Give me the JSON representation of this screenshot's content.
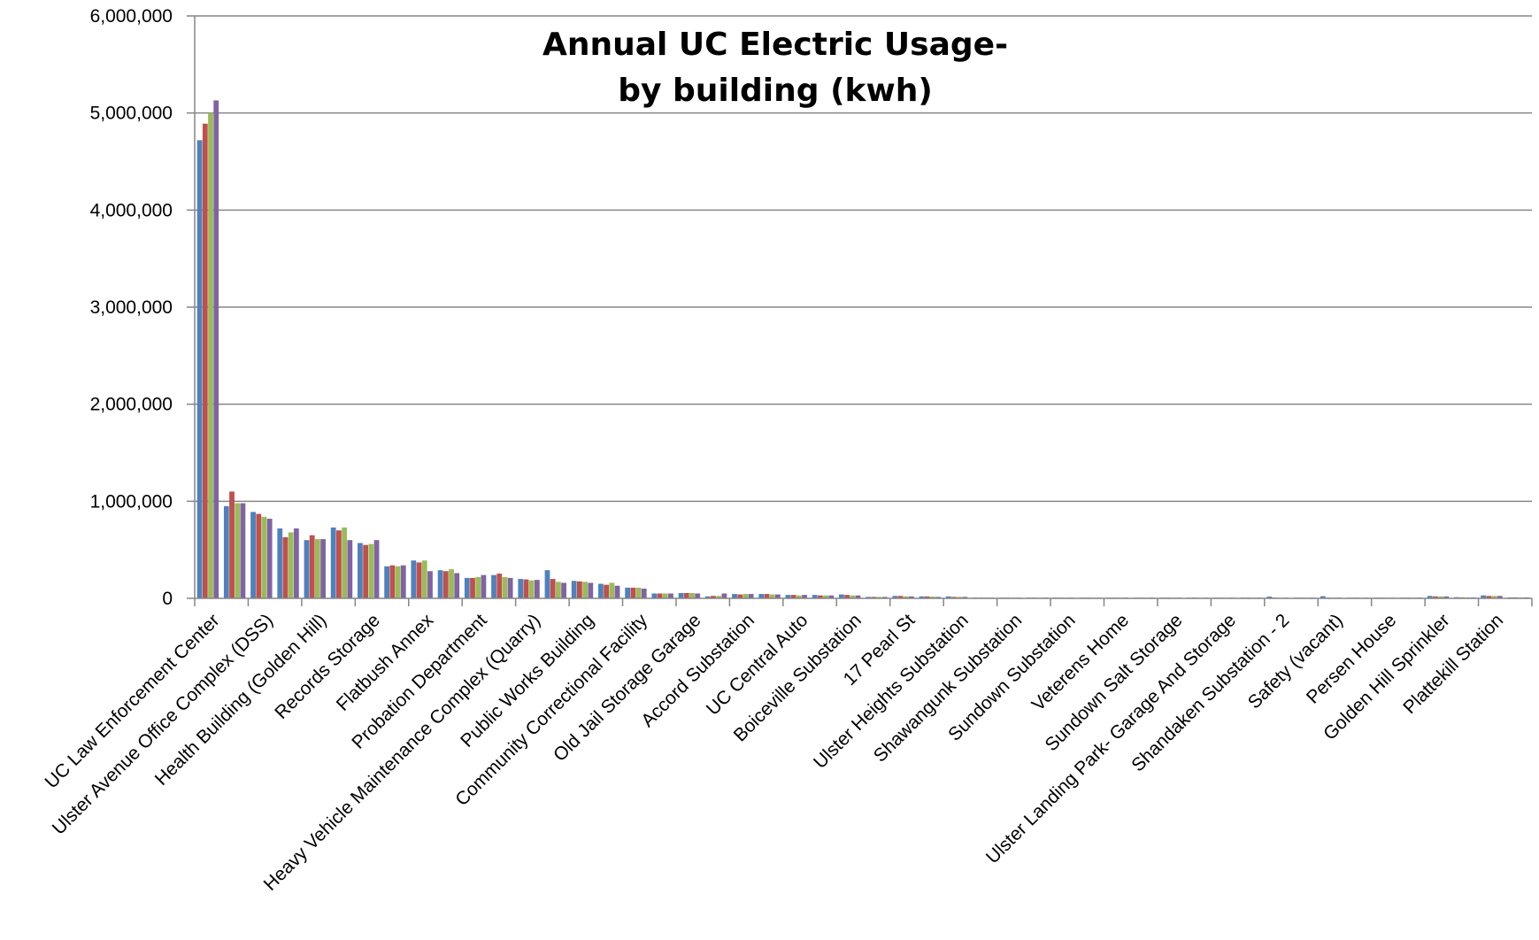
{
  "chart_data": {
    "type": "bar",
    "title": [
      "Annual UC Electric Usage-",
      "by building (kwh)"
    ],
    "ylim": [
      0,
      6000000
    ],
    "yticks": [
      0,
      1000000,
      2000000,
      3000000,
      4000000,
      5000000,
      6000000
    ],
    "ytick_labels": [
      "0",
      "1,000,000",
      "2,000,000",
      "3,000,000",
      "4,000,000",
      "5,000,000",
      "6,000,000"
    ],
    "grid": true,
    "categories": [
      "UC Law Enforcement Center",
      "",
      "Ulster Avenue Office Complex (DSS)",
      "",
      "Health Building (Golden Hill)",
      "",
      "Records Storage",
      "",
      "Flatbush Annex",
      "",
      "Probation Department",
      "",
      "Heavy Vehicle Maintenance Complex (Quarry)",
      "",
      "Public Works Building",
      "",
      "Community Correctional Facility",
      "",
      "Old Jail Storage Garage",
      "",
      "Accord Substation",
      "",
      "UC Central Auto",
      "",
      "Boiceville Substation",
      "",
      "17 Pearl St",
      "",
      "Ulster Heights Substation",
      "",
      "Shawangunk Substation",
      "",
      "Sundown Substation",
      "",
      "Veterens Home",
      "",
      "Sundown Salt Storage",
      "",
      "Ulster Landing Park- Garage And Storage",
      "",
      "Shandaken Substation - 2",
      "",
      "Safety (vacant)",
      "",
      "Persen House",
      "",
      "Golden Hill Sprinkler",
      "",
      "Plattekill Station",
      ""
    ],
    "series": [
      {
        "color": "#4f81bd",
        "values": [
          4720000,
          950000,
          890000,
          720000,
          600000,
          730000,
          570000,
          330000,
          390000,
          290000,
          210000,
          240000,
          200000,
          290000,
          180000,
          150000,
          110000,
          50000,
          55000,
          20000,
          45000,
          45000,
          35000,
          35000,
          40000,
          15000,
          25000,
          20000,
          20000,
          8000,
          5000,
          3000,
          2000,
          2000,
          3000,
          2000,
          3000,
          2000,
          3000,
          2000,
          18000,
          2000,
          22000,
          2000,
          3000,
          2000,
          25000,
          12000,
          30000,
          10000
        ]
      },
      {
        "color": "#c0504d",
        "values": [
          4890000,
          1100000,
          870000,
          630000,
          650000,
          700000,
          550000,
          340000,
          370000,
          280000,
          210000,
          255000,
          195000,
          200000,
          175000,
          140000,
          110000,
          50000,
          55000,
          25000,
          40000,
          45000,
          35000,
          30000,
          35000,
          15000,
          25000,
          20000,
          15000,
          8000,
          5000,
          3000,
          2000,
          2000,
          3000,
          2000,
          3000,
          2000,
          3000,
          2000,
          5000,
          2000,
          5000,
          2000,
          3000,
          2000,
          20000,
          10000,
          25000,
          10000
        ]
      },
      {
        "color": "#9bbb59",
        "values": [
          5000000,
          980000,
          840000,
          680000,
          610000,
          730000,
          560000,
          330000,
          390000,
          300000,
          220000,
          220000,
          185000,
          170000,
          170000,
          160000,
          110000,
          50000,
          55000,
          25000,
          45000,
          40000,
          30000,
          30000,
          30000,
          15000,
          20000,
          18000,
          15000,
          8000,
          5000,
          3000,
          2000,
          2000,
          3000,
          2000,
          3000,
          2000,
          3000,
          2000,
          5000,
          2000,
          5000,
          2000,
          3000,
          2000,
          20000,
          10000,
          25000,
          10000
        ]
      },
      {
        "color": "#8064a2",
        "values": [
          5130000,
          980000,
          820000,
          720000,
          610000,
          600000,
          600000,
          340000,
          280000,
          260000,
          240000,
          210000,
          190000,
          160000,
          160000,
          130000,
          100000,
          50000,
          50000,
          50000,
          45000,
          40000,
          35000,
          30000,
          30000,
          15000,
          20000,
          15000,
          15000,
          5000,
          5000,
          3000,
          2000,
          2000,
          3000,
          2000,
          3000,
          2000,
          3000,
          2000,
          5000,
          2000,
          5000,
          2000,
          3000,
          2000,
          20000,
          10000,
          25000,
          10000
        ]
      }
    ]
  }
}
